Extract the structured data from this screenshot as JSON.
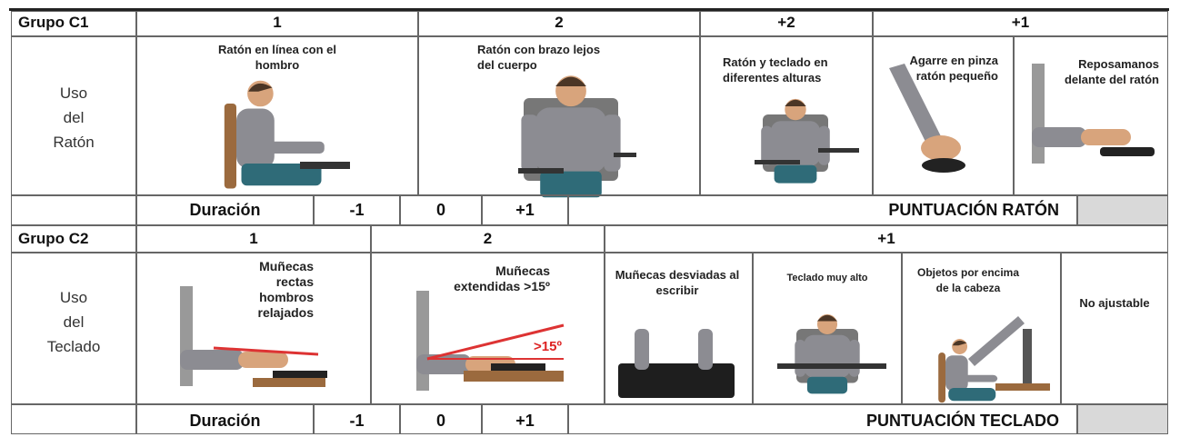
{
  "group_c1": {
    "title": "Grupo C1",
    "headers": [
      "1",
      "2",
      "+2",
      "+1"
    ],
    "row_label": [
      "Uso",
      "del",
      "Ratón"
    ],
    "items": [
      "Ratón en línea con el hombro",
      "Ratón con brazo lejos del cuerpo",
      "Ratón y teclado en diferentes alturas",
      "Agarre en pinza ratón pequeño",
      "Reposamanos delante del ratón"
    ],
    "duration": {
      "label": "Duración",
      "options": [
        "-1",
        "0",
        "+1"
      ]
    },
    "score_label": "PUNTUACIÓN RATÓN"
  },
  "group_c2": {
    "title": "Grupo C2",
    "headers": [
      "1",
      "2",
      "+1"
    ],
    "row_label": [
      "Uso",
      "del",
      "Teclado"
    ],
    "items": [
      "Muñecas rectas hombros relajados",
      "Muñecas extendidas >15º",
      "Muñecas desviadas al escribir",
      "Teclado muy alto",
      "Objetos por encima de la cabeza",
      "No ajustable"
    ],
    "angle_label": ">15º",
    "duration": {
      "label": "Duración",
      "options": [
        "-1",
        "0",
        "+1"
      ]
    },
    "score_label": "PUNTUACIÓN TECLADO"
  }
}
